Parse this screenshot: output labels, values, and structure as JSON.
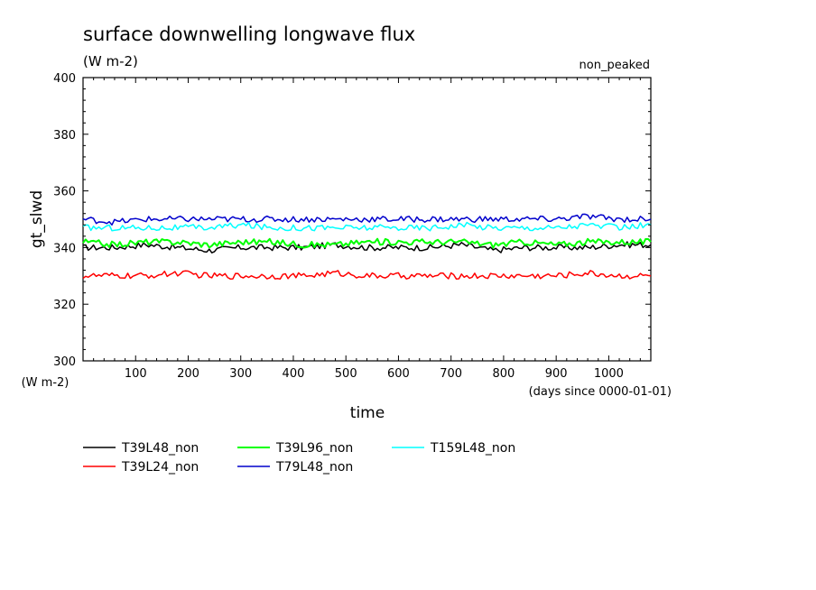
{
  "chart_data": {
    "type": "line",
    "title": "surface downwelling longwave flux",
    "units": "(W m-2)",
    "annotation": "non_peaked",
    "xlabel": "time",
    "x_units": "(days since 0000-01-01)",
    "ylabel": "gt_slwd",
    "y_units": "(W m-2)",
    "xlim": [
      0,
      1080
    ],
    "ylim": [
      300,
      400
    ],
    "x_ticks": [
      "100",
      "200",
      "300",
      "400",
      "500",
      "600",
      "700",
      "800",
      "900",
      "1000"
    ],
    "y_ticks": [
      "300",
      "320",
      "340",
      "360",
      "380",
      "400"
    ],
    "x_tick_values": [
      100,
      200,
      300,
      400,
      500,
      600,
      700,
      800,
      900,
      1000
    ],
    "y_tick_values": [
      300,
      320,
      340,
      360,
      380,
      400
    ],
    "grid": false,
    "legend_position": "bottom",
    "series": [
      {
        "name": "T39L48_non",
        "color": "#000000",
        "x": [
          0,
          60,
          120,
          180,
          240,
          300,
          360,
          420,
          480,
          540,
          600,
          660,
          720,
          780,
          840,
          900,
          960,
          1020,
          1080
        ],
        "values": [
          340,
          340,
          341,
          340,
          339,
          340,
          340,
          340,
          341,
          340,
          340,
          340,
          341,
          339,
          340,
          340,
          340,
          341,
          341
        ]
      },
      {
        "name": "T39L24_non",
        "color": "#ff0000",
        "x": [
          0,
          60,
          120,
          180,
          240,
          300,
          360,
          420,
          480,
          540,
          600,
          660,
          720,
          780,
          840,
          900,
          960,
          1020,
          1080
        ],
        "values": [
          330,
          330,
          330,
          331,
          330,
          330,
          330,
          330,
          331,
          330,
          330,
          330,
          330,
          330,
          330,
          330,
          331,
          330,
          330
        ]
      },
      {
        "name": "T39L96_non",
        "color": "#00ff00",
        "x": [
          0,
          60,
          120,
          180,
          240,
          300,
          360,
          420,
          480,
          540,
          600,
          660,
          720,
          780,
          840,
          900,
          960,
          1020,
          1080
        ],
        "values": [
          342,
          341,
          342,
          342,
          341,
          342,
          342,
          341,
          341,
          342,
          342,
          342,
          342,
          341,
          342,
          341,
          342,
          342,
          342
        ]
      },
      {
        "name": "T79L48_non",
        "color": "#0000cc",
        "x": [
          0,
          60,
          120,
          180,
          240,
          300,
          360,
          420,
          480,
          540,
          600,
          660,
          720,
          780,
          840,
          900,
          960,
          1020,
          1080
        ],
        "values": [
          350,
          349,
          350,
          350,
          350,
          350,
          350,
          350,
          350,
          350,
          350,
          350,
          350,
          350,
          350,
          350,
          351,
          350,
          350
        ]
      },
      {
        "name": "T159L48_non",
        "color": "#00ffff",
        "x": [
          0,
          60,
          120,
          180,
          240,
          300,
          360,
          420,
          480,
          540,
          600,
          660,
          720,
          780,
          840,
          900,
          960,
          1020,
          1080
        ],
        "values": [
          347,
          347,
          347,
          347,
          347,
          348,
          347,
          347,
          347,
          347,
          347,
          347,
          348,
          347,
          347,
          347,
          348,
          347,
          348
        ]
      }
    ]
  }
}
